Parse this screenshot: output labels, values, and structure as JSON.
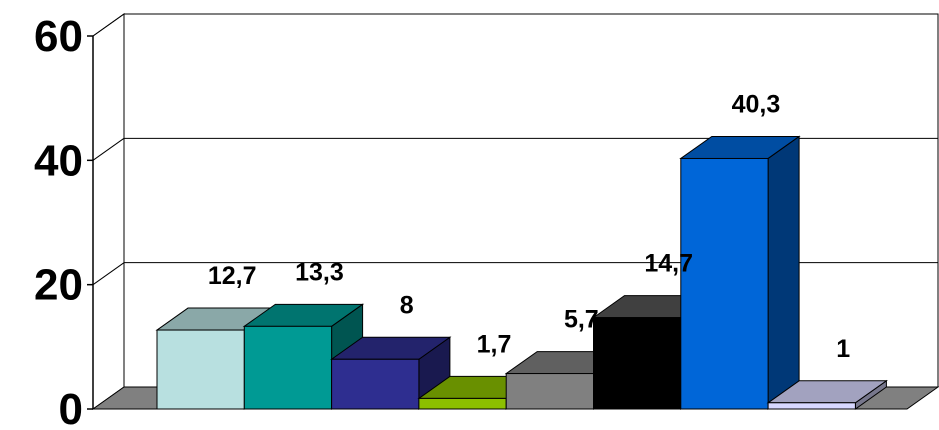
{
  "chart_data": {
    "type": "bar",
    "three_d": true,
    "ylim": [
      0,
      60
    ],
    "y_ticks": [
      "0",
      "20",
      "40",
      "60"
    ],
    "y_tick_values": [
      0,
      20,
      40,
      60
    ],
    "grid": true,
    "legend": "none",
    "series": [
      {
        "values": [
          12.7,
          13.3,
          8,
          1.7,
          5.7,
          14.7,
          40.3,
          1
        ],
        "labels": [
          "12,7",
          "13,3",
          "8",
          "1,7",
          "5,7",
          "14,7",
          "40,3",
          "1"
        ],
        "colors": [
          "#b8e0e0",
          "#009a94",
          "#2e2e90",
          "#8cc000",
          "#808080",
          "#000000",
          "#0066d8",
          "#d8d8ff"
        ]
      }
    ]
  }
}
